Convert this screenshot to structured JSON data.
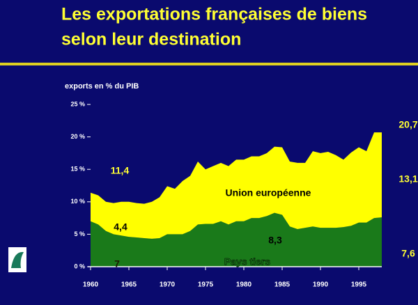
{
  "chart_data": {
    "type": "stacked_area",
    "title": "Les exportations françaises de biens",
    "subtitle": "selon leur destination",
    "ylabel": "exports en % du PIB",
    "x": [
      1960,
      1961,
      1962,
      1963,
      1964,
      1965,
      1966,
      1967,
      1968,
      1969,
      1970,
      1971,
      1972,
      1973,
      1974,
      1975,
      1976,
      1977,
      1978,
      1979,
      1980,
      1981,
      1982,
      1983,
      1984,
      1985,
      1986,
      1987,
      1988,
      1989,
      1990,
      1991,
      1992,
      1993,
      1994,
      1995,
      1996,
      1997,
      1998
    ],
    "series": [
      {
        "name": "Pays tiers",
        "color": "#1a7a1a",
        "values": [
          7,
          6.5,
          5.5,
          5,
          4.8,
          4.6,
          4.5,
          4.4,
          4.3,
          4.4,
          5,
          5,
          5,
          5.5,
          6.5,
          6.6,
          6.6,
          7,
          6.5,
          7,
          7,
          7.5,
          7.5,
          7.8,
          8.3,
          8,
          6.2,
          5.8,
          6,
          6.2,
          6,
          6,
          6,
          6.1,
          6.3,
          6.8,
          6.8,
          7.5,
          7.6
        ]
      },
      {
        "name": "Union européenne",
        "color": "#ffff00",
        "values": [
          4.4,
          4.5,
          4.5,
          4.8,
          5.2,
          5.4,
          5.3,
          5.3,
          5.7,
          6.3,
          7.4,
          7,
          8.2,
          8.5,
          9.7,
          8.4,
          8.9,
          9,
          9,
          9.5,
          9.5,
          9.5,
          9.5,
          9.7,
          10.2,
          10.4,
          10,
          10.2,
          10,
          11.6,
          11.5,
          11.7,
          11.2,
          10.4,
          11.3,
          11.6,
          11,
          13.2,
          13.1
        ]
      }
    ],
    "annotations": [
      "11,4",
      "4,4",
      "7",
      "8,3",
      "20,7",
      "13,1",
      "7,6"
    ],
    "xlim": [
      1960,
      1998
    ],
    "xticks": [
      1960,
      1965,
      1970,
      1975,
      1980,
      1985,
      1990,
      1995
    ],
    "ylim": [
      0,
      25
    ],
    "yticks": [
      {
        "value": 0,
        "label": "0 %"
      },
      {
        "value": 5,
        "label": "5 %"
      },
      {
        "value": 10,
        "label": "10 %"
      },
      {
        "value": 15,
        "label": "15 %"
      },
      {
        "value": 20,
        "label": "20 %"
      },
      {
        "value": 25,
        "label": "25 %"
      }
    ]
  }
}
